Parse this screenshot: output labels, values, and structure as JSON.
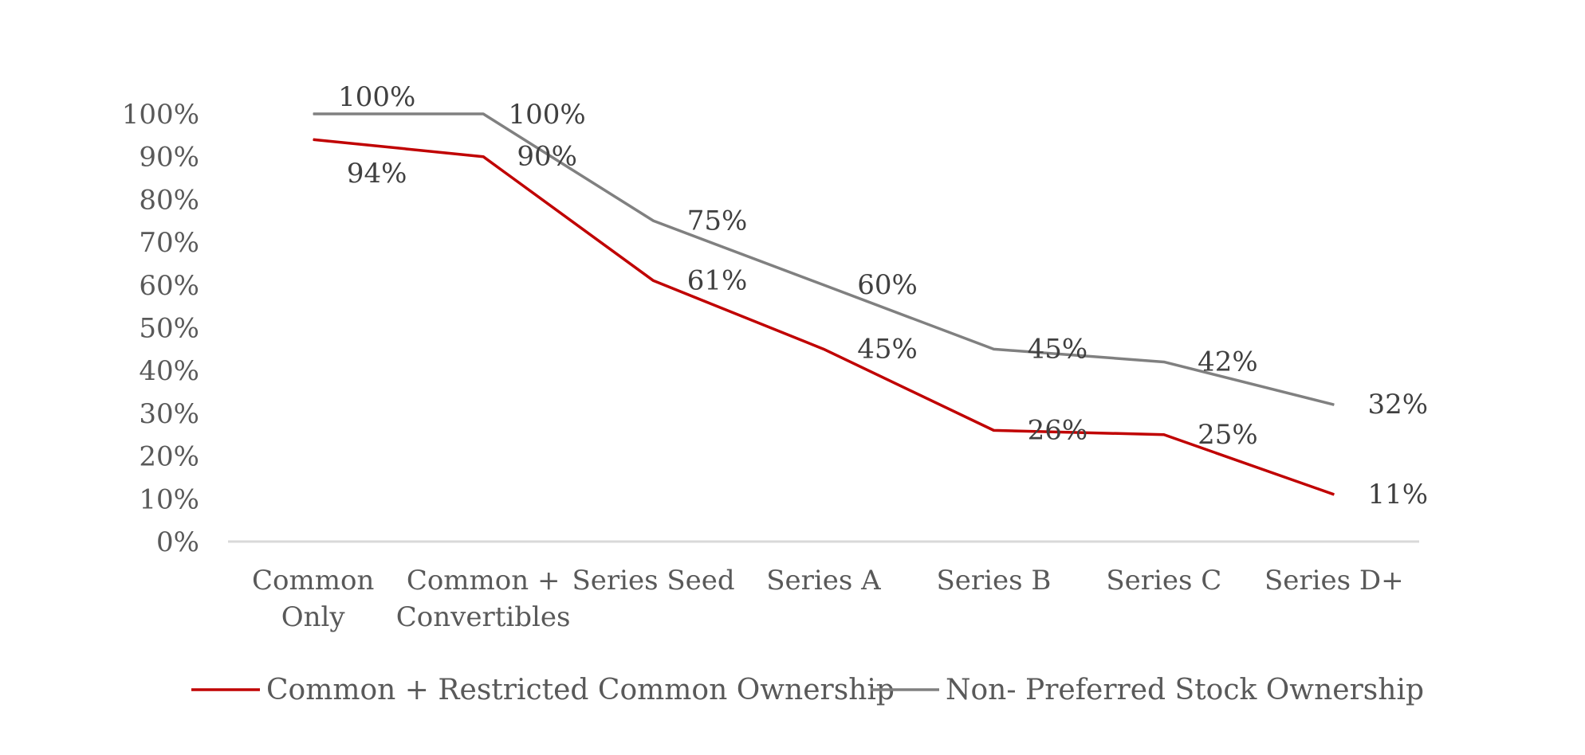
{
  "chart_data": {
    "type": "line",
    "categories": [
      [
        "Common",
        "Only"
      ],
      [
        "Common +",
        "Convertibles"
      ],
      [
        "Series Seed"
      ],
      [
        "Series A"
      ],
      [
        "Series B"
      ],
      [
        "Series C"
      ],
      [
        "Series D+"
      ]
    ],
    "ylim": [
      0,
      100
    ],
    "yticks": [
      "0%",
      "10%",
      "20%",
      "30%",
      "40%",
      "50%",
      "60%",
      "70%",
      "80%",
      "90%",
      "100%"
    ],
    "grid": false,
    "legend_position": "bottom",
    "series": [
      {
        "name": "Common + Restricted Common Ownership",
        "color": "#c00000",
        "values": [
          94,
          90,
          61,
          45,
          26,
          25,
          11
        ],
        "labels": [
          "94%",
          "90%",
          "61%",
          "45%",
          "26%",
          "25%",
          "11%"
        ]
      },
      {
        "name": "Non- Preferred Stock Ownership",
        "color": "#808080",
        "values": [
          100,
          100,
          75,
          60,
          45,
          42,
          32
        ],
        "labels": [
          "100%",
          "100%",
          "75%",
          "60%",
          "45%",
          "42%",
          "32%"
        ]
      }
    ]
  }
}
